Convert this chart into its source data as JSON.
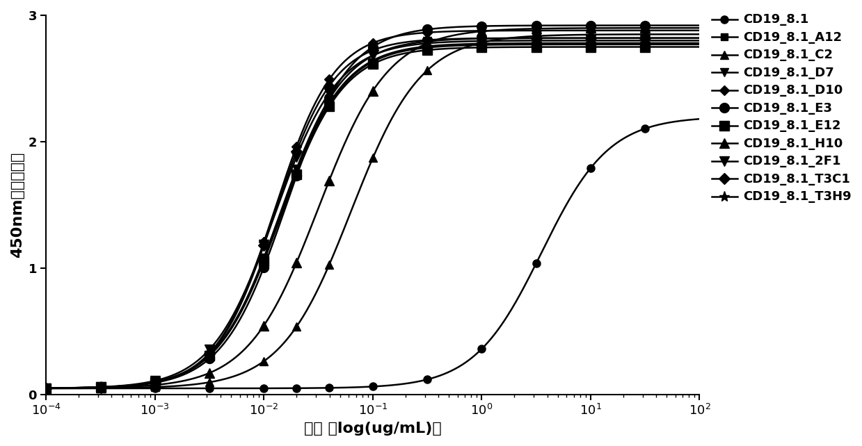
{
  "title": "",
  "xlabel": "浓度 ［log(ug/mL)］",
  "ylabel": "450nm处的吸光度",
  "xlim_log": [
    -4,
    2
  ],
  "ylim": [
    0,
    3.0
  ],
  "yticks": [
    0,
    1,
    2,
    3
  ],
  "series": [
    {
      "name": "CD19_8.1",
      "ec50_log": 0.55,
      "hill": 1.4,
      "top": 2.2,
      "bottom": 0.05,
      "marker": "o",
      "markersize": 8,
      "color": "#000000",
      "filled": true
    },
    {
      "name": "CD19_8.1_A12",
      "ec50_log": -1.85,
      "hill": 1.5,
      "top": 2.77,
      "bottom": 0.05,
      "marker": "s",
      "markersize": 7,
      "color": "#000000",
      "filled": true
    },
    {
      "name": "CD19_8.1_C2",
      "ec50_log": -1.2,
      "hill": 1.35,
      "top": 2.85,
      "bottom": 0.05,
      "marker": "^",
      "markersize": 8,
      "color": "#000000",
      "filled": true
    },
    {
      "name": "CD19_8.1_D7",
      "ec50_log": -1.85,
      "hill": 1.5,
      "top": 2.82,
      "bottom": 0.05,
      "marker": "v",
      "markersize": 8,
      "color": "#000000",
      "filled": true
    },
    {
      "name": "CD19_8.1_D10",
      "ec50_log": -1.9,
      "hill": 1.6,
      "top": 2.88,
      "bottom": 0.05,
      "marker": "D",
      "markersize": 7,
      "color": "#000000",
      "filled": true
    },
    {
      "name": "CD19_8.1_E3",
      "ec50_log": -1.8,
      "hill": 1.5,
      "top": 2.92,
      "bottom": 0.05,
      "marker": "o",
      "markersize": 10,
      "color": "#000000",
      "filled": true
    },
    {
      "name": "CD19_8.1_E12",
      "ec50_log": -1.85,
      "hill": 1.5,
      "top": 2.75,
      "bottom": 0.05,
      "marker": "s",
      "markersize": 10,
      "color": "#000000",
      "filled": true
    },
    {
      "name": "CD19_8.1_H10",
      "ec50_log": -1.5,
      "hill": 1.35,
      "top": 2.9,
      "bottom": 0.05,
      "marker": "^",
      "markersize": 10,
      "color": "#000000",
      "filled": true
    },
    {
      "name": "CD19_8.1_2F1",
      "ec50_log": -1.9,
      "hill": 1.5,
      "top": 2.8,
      "bottom": 0.05,
      "marker": "v",
      "markersize": 10,
      "color": "#000000",
      "filled": true
    },
    {
      "name": "CD19_8.1_T3C1",
      "ec50_log": -1.9,
      "hill": 1.6,
      "top": 2.82,
      "bottom": 0.05,
      "marker": "D",
      "markersize": 8,
      "color": "#000000",
      "filled": true
    },
    {
      "name": "CD19_8.1_T3H9",
      "ec50_log": -1.85,
      "hill": 1.5,
      "top": 2.78,
      "bottom": 0.05,
      "marker": "*",
      "markersize": 11,
      "color": "#000000",
      "filled": true
    }
  ],
  "sample_x_log": [
    -4,
    -3.5,
    -3,
    -2.5,
    -2,
    -1.7,
    -1.4,
    -1.0,
    -0.5,
    0.0,
    0.5,
    1.0,
    1.5
  ],
  "background_color": "#ffffff"
}
